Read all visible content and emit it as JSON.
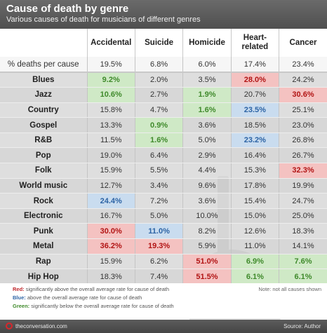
{
  "header": {
    "title": "Cause of death by genre",
    "subtitle": "Various causes of death for musicians of different genres"
  },
  "colors": {
    "red": "#b21414",
    "blue": "#2d64a5",
    "green": "#3f8a2b",
    "header_bg": "#5a5a5a"
  },
  "chart_data": {
    "type": "table",
    "title": "Cause of death by genre",
    "subtitle": "Various causes of death for musicians of different genres",
    "columns": [
      "Accidental",
      "Suicide",
      "Homicide",
      "Heart-related",
      "Cancer"
    ],
    "overall": {
      "label": "% deaths per cause",
      "values": [
        "19.5%",
        "6.8%",
        "6.0%",
        "17.4%",
        "23.4%"
      ]
    },
    "rows": [
      {
        "genre": "Blues",
        "values": [
          "9.2%",
          "2.0%",
          "3.5%",
          "28.0%",
          "24.2%"
        ],
        "hl": [
          "green",
          "",
          "",
          "red",
          ""
        ]
      },
      {
        "genre": "Jazz",
        "values": [
          "10.6%",
          "2.7%",
          "1.9%",
          "20.7%",
          "30.6%"
        ],
        "hl": [
          "green",
          "",
          "green",
          "",
          "red"
        ]
      },
      {
        "genre": "Country",
        "values": [
          "15.8%",
          "4.7%",
          "1.6%",
          "23.5%",
          "25.1%"
        ],
        "hl": [
          "",
          "",
          "green",
          "blue",
          ""
        ]
      },
      {
        "genre": "Gospel",
        "values": [
          "13.3%",
          "0.9%",
          "3.6%",
          "18.5%",
          "23.0%"
        ],
        "hl": [
          "",
          "green",
          "",
          "",
          ""
        ]
      },
      {
        "genre": "R&B",
        "values": [
          "11.5%",
          "1.6%",
          "5.0%",
          "23.2%",
          "26.8%"
        ],
        "hl": [
          "",
          "green",
          "",
          "blue",
          ""
        ]
      },
      {
        "genre": "Pop",
        "values": [
          "19.0%",
          "6.4%",
          "2.9%",
          "16.4%",
          "26.7%"
        ],
        "hl": [
          "",
          "",
          "",
          "",
          ""
        ]
      },
      {
        "genre": "Folk",
        "values": [
          "15.9%",
          "5.5%",
          "4.4%",
          "15.3%",
          "32.3%"
        ],
        "hl": [
          "",
          "",
          "",
          "",
          "red"
        ]
      },
      {
        "genre": "World music",
        "values": [
          "12.7%",
          "3.4%",
          "9.6%",
          "17.8%",
          "19.9%"
        ],
        "hl": [
          "",
          "",
          "",
          "",
          ""
        ]
      },
      {
        "genre": "Rock",
        "values": [
          "24.4%",
          "7.2%",
          "3.6%",
          "15.4%",
          "24.7%"
        ],
        "hl": [
          "blue",
          "",
          "",
          "",
          ""
        ]
      },
      {
        "genre": "Electronic",
        "values": [
          "16.7%",
          "5.0%",
          "10.0%",
          "15.0%",
          "25.0%"
        ],
        "hl": [
          "",
          "",
          "",
          "",
          ""
        ]
      },
      {
        "genre": "Punk",
        "values": [
          "30.0%",
          "11.0%",
          "8.2%",
          "12.6%",
          "18.3%"
        ],
        "hl": [
          "red",
          "blue",
          "",
          "",
          ""
        ]
      },
      {
        "genre": "Metal",
        "values": [
          "36.2%",
          "19.3%",
          "5.9%",
          "11.0%",
          "14.1%"
        ],
        "hl": [
          "red",
          "red",
          "",
          "",
          ""
        ]
      },
      {
        "genre": "Rap",
        "values": [
          "15.9%",
          "6.2%",
          "51.0%",
          "6.9%",
          "7.6%"
        ],
        "hl": [
          "",
          "",
          "red",
          "green",
          "green"
        ]
      },
      {
        "genre": "Hip Hop",
        "values": [
          "18.3%",
          "7.4%",
          "51.5%",
          "6.1%",
          "6.1%"
        ],
        "hl": [
          "",
          "",
          "red",
          "green",
          "green"
        ]
      }
    ]
  },
  "legend": {
    "red_key": "Red:",
    "red_text": "significantly above the overall average rate for cause of death",
    "blue_key": "Blue:",
    "blue_text": "above the overall average rate for cause of death",
    "green_key": "Green:",
    "green_text": "significantly below the overall average rate for cause of death"
  },
  "note": "Note: not all causes shown",
  "footer": {
    "brand": "theconversation.com",
    "source": "Source: Author"
  }
}
